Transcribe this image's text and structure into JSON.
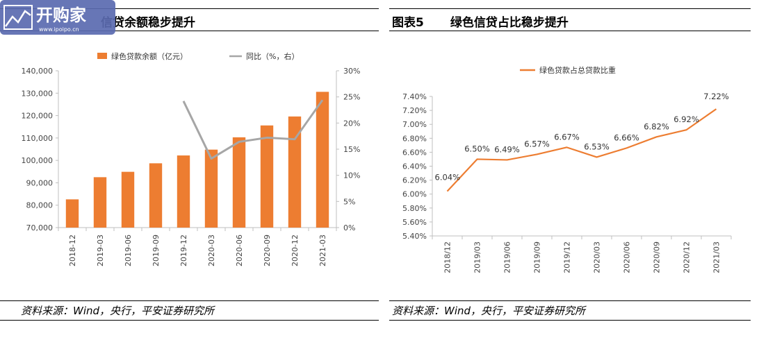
{
  "left_panel": {
    "figure_no": "",
    "title": "信贷余额稳步提升",
    "source": "资料来源：Wind，央行，平安证券研究所",
    "watermark_text": "开购家",
    "watermark_url": "www.ipoipo.cn"
  },
  "right_panel": {
    "figure_no": "图表5",
    "title": "绿色信贷占比稳步提升",
    "source": "资料来源：Wind，央行，平安证券研究所"
  },
  "colors": {
    "bar": "#ED7D31",
    "yoy_line": "#A6A6A6",
    "share_line": "#ED7D31"
  },
  "chart_data": [
    {
      "type": "bar",
      "categories": [
        "2018-12",
        "2019-03",
        "2019-06",
        "2019-09",
        "2019-12",
        "2020-03",
        "2020-06",
        "2020-09",
        "2020-12",
        "2021-03"
      ],
      "series": [
        {
          "name": "绿色贷款余额（亿元）",
          "type": "bar",
          "axis": "left",
          "values": [
            82600,
            92500,
            94900,
            98700,
            102200,
            104800,
            110300,
            115600,
            119600,
            130600
          ]
        },
        {
          "name": "同比（%，右）",
          "type": "line",
          "axis": "right",
          "values": [
            null,
            null,
            null,
            null,
            24.2,
            13.2,
            16.4,
            17.2,
            16.9,
            24.4
          ]
        }
      ],
      "ylim": [
        70000,
        140000
      ],
      "y_ticks": [
        70000,
        80000,
        90000,
        100000,
        110000,
        120000,
        130000,
        140000
      ],
      "y_tick_labels": [
        "70,000",
        "80,000",
        "90,000",
        "100,000",
        "110,000",
        "120,000",
        "130,000",
        "140,000"
      ],
      "y2lim": [
        0,
        30
      ],
      "y2_ticks": [
        0,
        5,
        10,
        15,
        20,
        25,
        30
      ],
      "y2_tick_labels": [
        "0%",
        "5%",
        "10%",
        "15%",
        "20%",
        "25%",
        "30%"
      ],
      "legend": "top"
    },
    {
      "type": "line",
      "categories": [
        "2018/12",
        "2019/03",
        "2019/06",
        "2019/09",
        "2019/12",
        "2020/03",
        "2020/06",
        "2020/09",
        "2020/12",
        "2021/03"
      ],
      "series": [
        {
          "name": "绿色贷款占总贷款比重",
          "values": [
            6.04,
            6.5,
            6.49,
            6.57,
            6.67,
            6.53,
            6.66,
            6.82,
            6.92,
            7.22
          ],
          "labels": [
            "6.04%",
            "6.50%",
            "6.49%",
            "6.57%",
            "6.67%",
            "6.53%",
            "6.66%",
            "6.82%",
            "6.92%",
            "7.22%"
          ]
        }
      ],
      "ylim": [
        5.4,
        7.4
      ],
      "y_ticks": [
        5.4,
        5.6,
        5.8,
        6.0,
        6.2,
        6.4,
        6.6,
        6.8,
        7.0,
        7.2,
        7.4
      ],
      "y_tick_labels": [
        "5.40%",
        "5.60%",
        "5.80%",
        "6.00%",
        "6.20%",
        "6.40%",
        "6.60%",
        "6.80%",
        "7.00%",
        "7.20%",
        "7.40%"
      ],
      "legend": "top"
    }
  ]
}
